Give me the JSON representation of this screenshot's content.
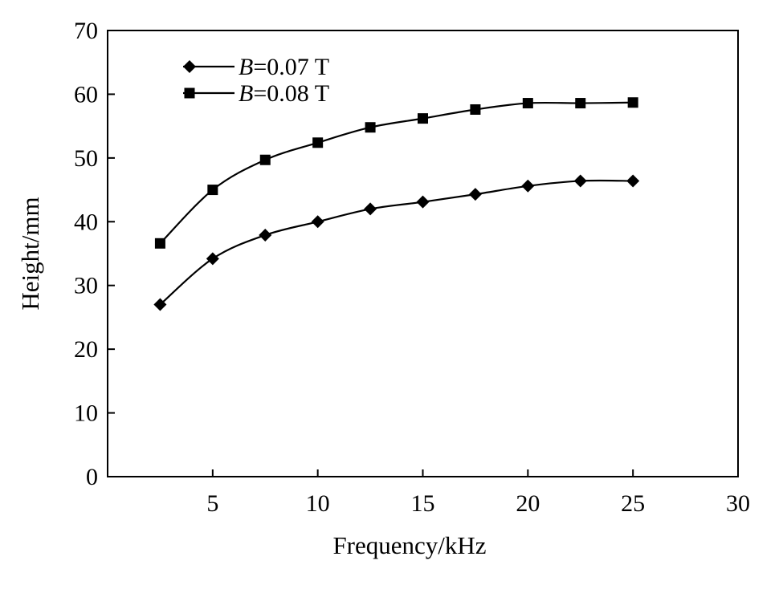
{
  "chart_data": {
    "type": "line",
    "title": "",
    "xlabel": "Frequency/kHz",
    "ylabel": "Height/mm",
    "xlim": [
      0,
      30
    ],
    "ylim": [
      0,
      70
    ],
    "xticks": [
      5,
      10,
      15,
      20,
      25,
      30
    ],
    "yticks": [
      0,
      10,
      20,
      30,
      40,
      50,
      60,
      70
    ],
    "grid": false,
    "legend_position": "top-left",
    "series": [
      {
        "name": "B=0.07 T",
        "name_italic": "B",
        "name_rest": "=0.07 T",
        "marker": "diamond",
        "color": "#000000",
        "x": [
          2.5,
          5,
          7.5,
          10,
          12.5,
          15,
          17.5,
          20,
          22.5,
          25
        ],
        "y": [
          27.0,
          34.2,
          37.9,
          40.0,
          42.0,
          43.1,
          44.3,
          45.6,
          46.4,
          46.4
        ]
      },
      {
        "name": "B=0.08 T",
        "name_italic": "B",
        "name_rest": "=0.08 T",
        "marker": "square",
        "color": "#000000",
        "x": [
          2.5,
          5,
          7.5,
          10,
          12.5,
          15,
          17.5,
          20,
          22.5,
          25
        ],
        "y": [
          36.6,
          45.0,
          49.7,
          52.4,
          54.8,
          56.2,
          57.6,
          58.6,
          58.6,
          58.7
        ]
      }
    ]
  }
}
